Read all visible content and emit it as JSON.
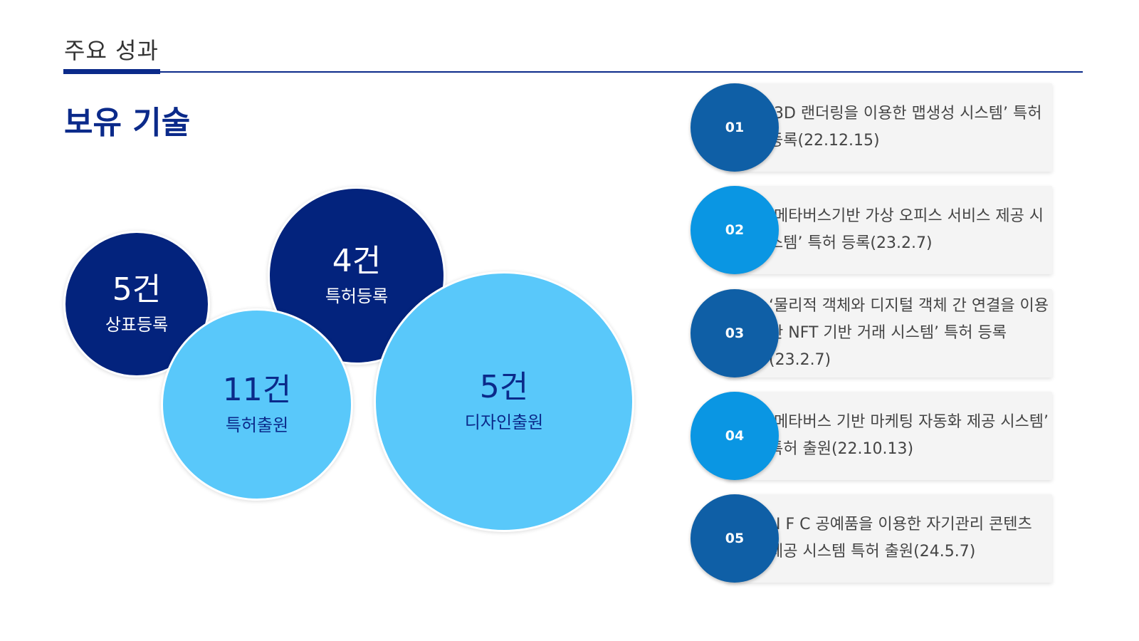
{
  "header": {
    "title": "주요 성과"
  },
  "section": {
    "title": "보유 기술"
  },
  "bubbles": [
    {
      "count": "5건",
      "label": "상표등록"
    },
    {
      "count": "4건",
      "label": "특허등록"
    },
    {
      "count": "11건",
      "label": "특허출원"
    },
    {
      "count": "5건",
      "label": "디자인출원"
    }
  ],
  "items": [
    {
      "number": "01",
      "text": "‘3D 랜더링을 이용한 맵생성 시스템’ 특허 등록(22.12.15)"
    },
    {
      "number": "02",
      "text": "‘메타버스기반 가상 오피스 서비스 제공 시스템’ 특허 등록(23.2.7)"
    },
    {
      "number": "03",
      "text": "‘물리적 객체와 디지털 객체 간 연결을 이용한 NFT 기반 거래 시스템’ 특허 등록(23.2.7)"
    },
    {
      "number": "04",
      "text": "‘메타버스 기반 마케팅 자동화 제공 시스템’ 특허 출원(22.10.13)"
    },
    {
      "number": "05",
      "text": "N F C 공예품을 이용한 자기관리 콘텐츠 제공 시스템 특허 출원(24.5.7)"
    }
  ],
  "colors": {
    "navy": "#03237d",
    "sky": "#59c8fa",
    "item_blue_dark": "#0f5fa6",
    "item_blue_light": "#0a96e3"
  }
}
